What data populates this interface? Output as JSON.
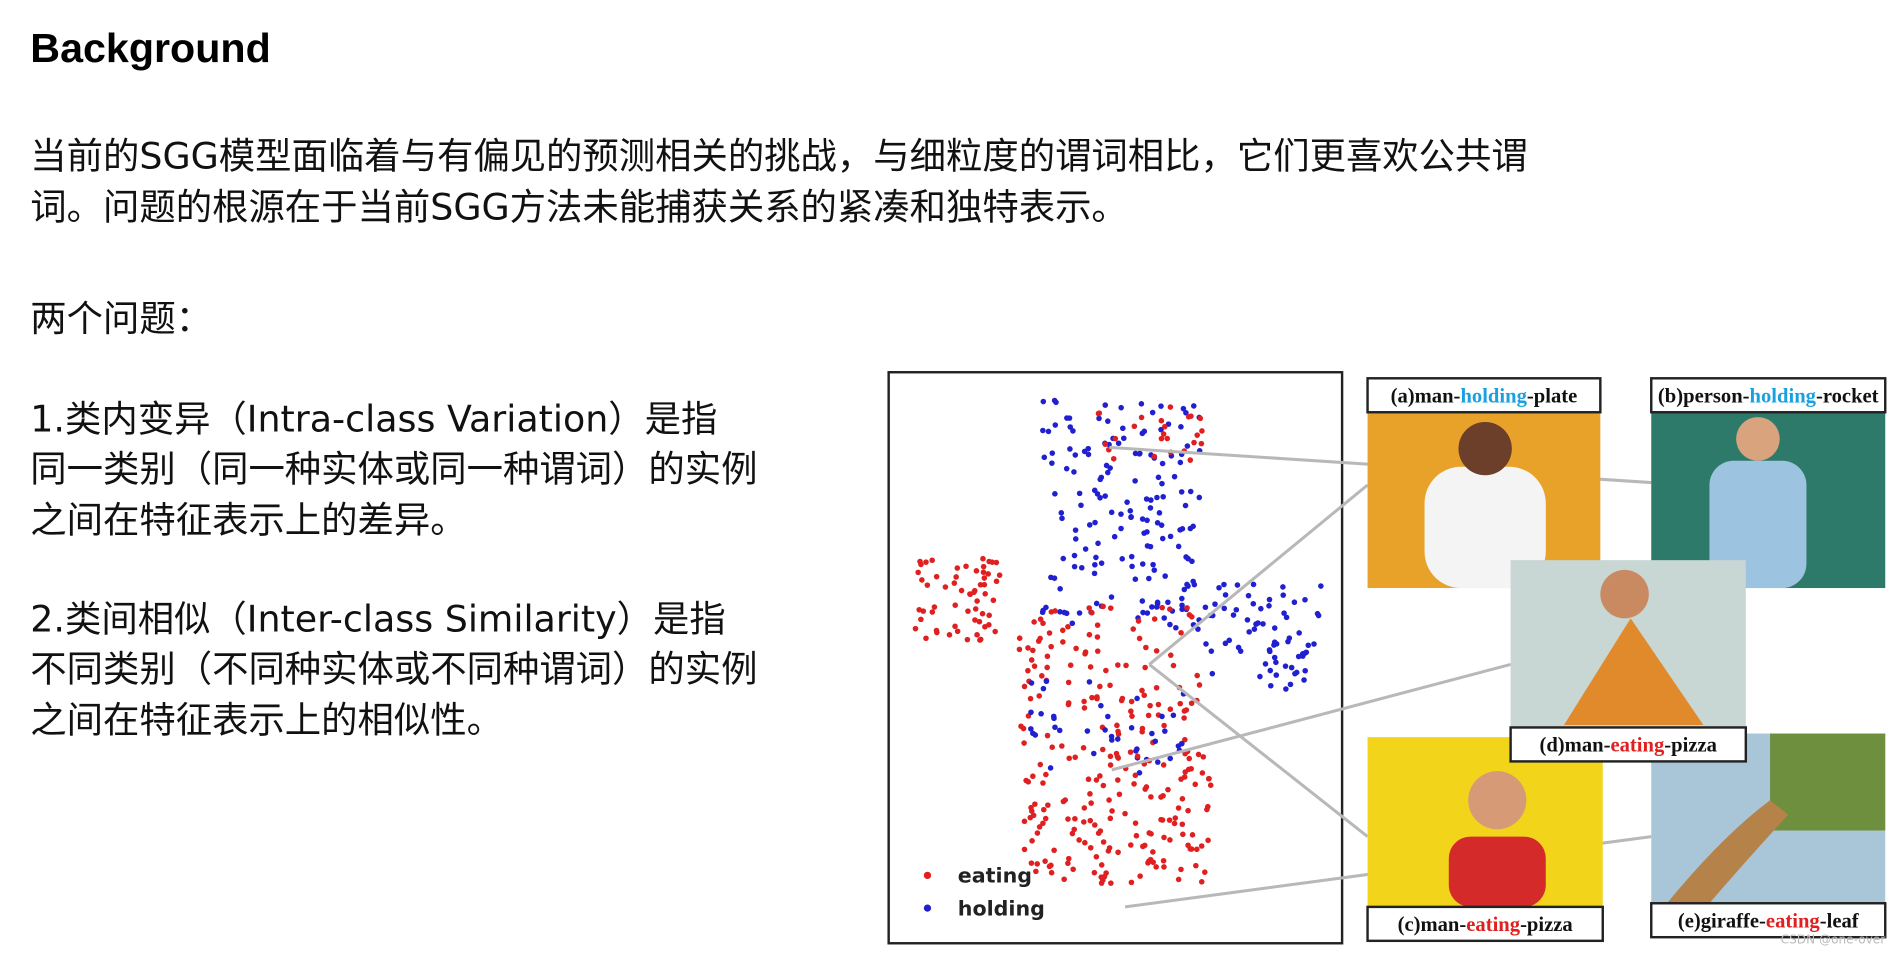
{
  "header": {
    "title": "Background"
  },
  "intro": {
    "lines": [
      "当前的SGG模型面临着与有偏见的预测相关的挑战，与细粒度的谓词相比，它们更喜欢公共谓",
      "词。问题的根源在于当前SGG方法未能捕获关系的紧凑和独特表示。"
    ]
  },
  "problems": {
    "heading": "两个问题：",
    "items": [
      {
        "lines": [
          "1.类内变异（Intra-class Variation）是指",
          "同一类别（同一种实体或同一种谓词）的实例",
          "之间在特征表示上的差异。"
        ]
      },
      {
        "lines": [
          "2.类间相似（Inter-class Similarity）是指",
          "不同类别（不同种实体或不同种谓词）的实例",
          "之间在特征表示上的相似性。"
        ]
      }
    ]
  },
  "figure": {
    "legend": [
      "eating",
      "holding"
    ],
    "captions": [
      {
        "pre": "(a)man-",
        "verb": "holding",
        "post": "-plate"
      },
      {
        "pre": "(b)person-",
        "verb": "holding",
        "post": "-rocket"
      },
      {
        "pre": "(d)man-",
        "verb": "eating",
        "post": "-pizza"
      },
      {
        "pre": "(c)man-",
        "verb": "eating",
        "post": "-pizza"
      },
      {
        "pre": "(e)giraffe-",
        "verb": "eating",
        "post": "-leaf"
      }
    ]
  },
  "watermark": "CSDN @one-over"
}
